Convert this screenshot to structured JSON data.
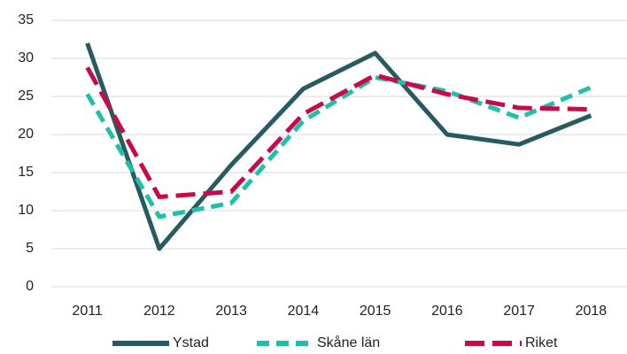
{
  "chart_data": {
    "type": "line",
    "categories": [
      "2011",
      "2012",
      "2013",
      "2014",
      "2015",
      "2016",
      "2017",
      "2018"
    ],
    "series": [
      {
        "name": "Ystad",
        "color": "#275b5f",
        "dashed": false,
        "values": [
          32,
          5,
          16,
          26,
          30.7,
          20,
          18.7,
          22.5
        ]
      },
      {
        "name": "Skåne län",
        "color": "#1fbfa9",
        "dashed": true,
        "values": [
          25.3,
          9.2,
          11,
          21.8,
          27.5,
          25.7,
          22.2,
          26.2
        ]
      },
      {
        "name": "Riket",
        "color": "#c8094c",
        "dashed": true,
        "values": [
          28.8,
          11.8,
          12.5,
          22.7,
          27.8,
          25.3,
          23.5,
          23.3
        ]
      }
    ],
    "ylim": [
      0,
      35
    ],
    "yticks": [
      0,
      5,
      10,
      15,
      20,
      25,
      30,
      35
    ],
    "grid": true,
    "legend": "bottom"
  }
}
